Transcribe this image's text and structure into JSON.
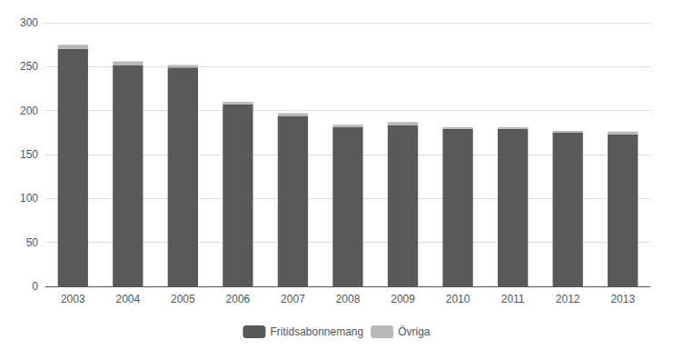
{
  "chart_data": {
    "type": "bar",
    "stacked": true,
    "categories": [
      "2003",
      "2004",
      "2005",
      "2006",
      "2007",
      "2008",
      "2009",
      "2010",
      "2011",
      "2012",
      "2013"
    ],
    "series": [
      {
        "name": "Fritidsabonnemang",
        "color": "#595959",
        "values": [
          270,
          252,
          249,
          207,
          194,
          181,
          183,
          179,
          179,
          175,
          173
        ]
      },
      {
        "name": "Övriga",
        "color": "#b8b8b8",
        "values": [
          5,
          4,
          3,
          3,
          3,
          3,
          4,
          2,
          2,
          2,
          3
        ]
      }
    ],
    "ylim": [
      0,
      300
    ],
    "yticks": [
      0,
      50,
      100,
      150,
      200,
      250,
      300
    ],
    "grid": true,
    "legend": "bottom"
  }
}
